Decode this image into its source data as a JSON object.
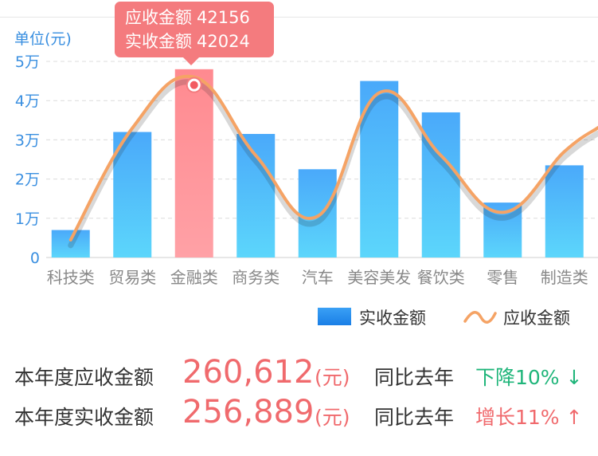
{
  "chart_data": {
    "type": "bar",
    "categories": [
      "科技类",
      "贸易类",
      "金融类",
      "商务类",
      "汽车",
      "美容美发",
      "餐饮类",
      "零售",
      "制造类"
    ],
    "series": [
      {
        "name": "实收金额",
        "type": "bar",
        "values": [
          7000,
          32000,
          48000,
          31500,
          22500,
          45000,
          37000,
          14000,
          23500
        ]
      },
      {
        "name": "应收金额",
        "type": "line",
        "values": [
          4500,
          33000,
          46000,
          26000,
          10500,
          42000,
          26000,
          11500,
          27000
        ]
      }
    ],
    "highlight_index": 2,
    "ylim": [
      0,
      50000
    ],
    "yticks": [
      0,
      10000,
      20000,
      30000,
      40000,
      50000
    ],
    "ytick_labels": [
      "0",
      "1万",
      "2万",
      "3万",
      "4万",
      "5万"
    ],
    "unit_label": "单位(元)",
    "grid": true,
    "legend_position": "bottom-right",
    "colors": {
      "bar": "#4fb0fb",
      "bar_highlight": "#ff8f94",
      "line": "#f5a365",
      "axis_text": "#3a8fe0",
      "category_text": "#888888"
    }
  },
  "tooltip": {
    "row1_label": "应收金额",
    "row1_value": "42156",
    "row2_label": "实收金额",
    "row2_value": "42024"
  },
  "legend": {
    "bar_label": "实收金额",
    "line_label": "应收金额"
  },
  "summary": {
    "receivable_label": "本年度应收金额",
    "receivable_value": "260,612",
    "receivable_unit": "(元)",
    "receivable_compare": "同比去年",
    "receivable_change": "下降10% ↓",
    "actual_label": "本年度实收金额",
    "actual_value": "256,889",
    "actual_unit": "(元)",
    "actual_compare": "同比去年",
    "actual_change": "增长11% ↑"
  }
}
